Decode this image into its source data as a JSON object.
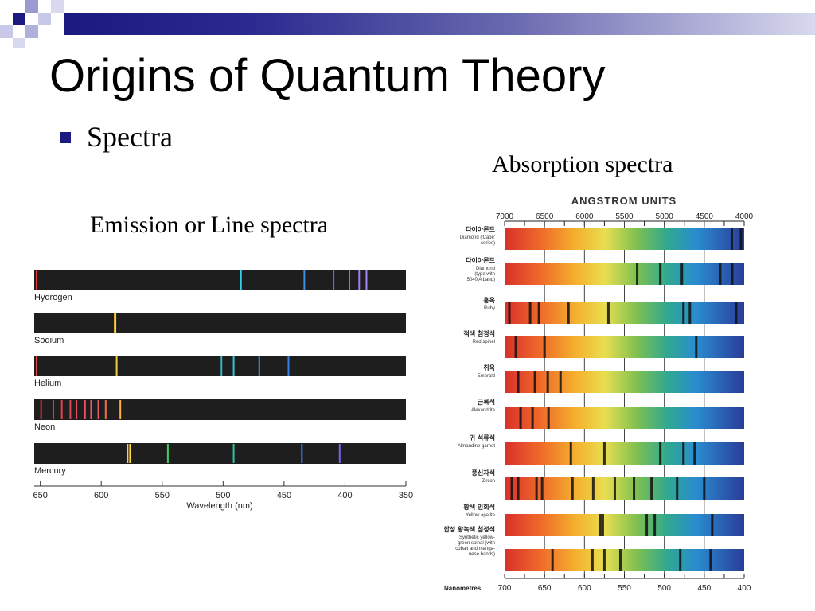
{
  "slide": {
    "title": "Origins of Quantum Theory",
    "bullet": "Spectra",
    "absorption_caption": "Absorption spectra",
    "emission_caption": "Emission or Line spectra",
    "accent_color": "#1a1a80"
  },
  "emission_panel": {
    "xlabel": "Wavelength (nm)",
    "ticks": [
      650,
      600,
      550,
      500,
      450,
      400,
      350
    ],
    "xlim": [
      655,
      350
    ],
    "spectra": [
      {
        "label": "Hydrogen",
        "lines": [
          {
            "nm": 656,
            "color": "#e23a3a"
          },
          {
            "nm": 486,
            "color": "#35d0e8"
          },
          {
            "nm": 434,
            "color": "#3a8fe6"
          },
          {
            "nm": 410,
            "color": "#6b5ee8"
          },
          {
            "nm": 397,
            "color": "#8a6ef0"
          },
          {
            "nm": 389,
            "color": "#9a7ef5"
          },
          {
            "nm": 383,
            "color": "#a08af5"
          }
        ]
      },
      {
        "label": "Sodium",
        "lines": [
          {
            "nm": 589,
            "color": "#ffd24a"
          },
          {
            "nm": 589.6,
            "color": "#ffc030"
          }
        ]
      },
      {
        "label": "Helium",
        "lines": [
          {
            "nm": 667,
            "color": "#e24a4a"
          },
          {
            "nm": 588,
            "color": "#f0d040"
          },
          {
            "nm": 502,
            "color": "#3ab0c0"
          },
          {
            "nm": 492,
            "color": "#35c5d0"
          },
          {
            "nm": 471,
            "color": "#3aa0e6"
          },
          {
            "nm": 447,
            "color": "#3a7fe6"
          }
        ]
      },
      {
        "label": "Neon",
        "lines": [
          {
            "nm": 650,
            "color": "#e03040"
          },
          {
            "nm": 640,
            "color": "#e83848"
          },
          {
            "nm": 633,
            "color": "#e84050"
          },
          {
            "nm": 626,
            "color": "#e04858"
          },
          {
            "nm": 621,
            "color": "#e85060"
          },
          {
            "nm": 614,
            "color": "#f05060"
          },
          {
            "nm": 609,
            "color": "#e85868"
          },
          {
            "nm": 603,
            "color": "#e86070"
          },
          {
            "nm": 597,
            "color": "#f07040"
          },
          {
            "nm": 585,
            "color": "#ffb040"
          }
        ]
      },
      {
        "label": "Mercury",
        "lines": [
          {
            "nm": 579,
            "color": "#ffd040"
          },
          {
            "nm": 577,
            "color": "#ffd850"
          },
          {
            "nm": 546,
            "color": "#40d060"
          },
          {
            "nm": 492,
            "color": "#30c0a0"
          },
          {
            "nm": 436,
            "color": "#4080ff"
          },
          {
            "nm": 405,
            "color": "#8060f0"
          }
        ]
      }
    ]
  },
  "absorption_panel": {
    "header": "ANGSTROM UNITS",
    "top_ticks": [
      "7000",
      "6500",
      "6000",
      "5500",
      "5000",
      "4500",
      "4000"
    ],
    "bottom_label": "Nanometres",
    "bottom_ticks": [
      "700",
      "650",
      "600",
      "550",
      "500",
      "450",
      "400"
    ],
    "gem_lines_angstrom": [
      [
        4155,
        4040
      ],
      [
        5340,
        5050,
        4780,
        4300,
        4150
      ],
      [
        6940,
        6680,
        6570,
        6200,
        5700,
        4760,
        4680,
        4100
      ],
      [
        6860,
        6500,
        4600
      ],
      [
        6830,
        6620,
        6460,
        6300
      ],
      [
        6800,
        6650,
        6450
      ],
      [
        6170,
        5750,
        5050,
        4760,
        4620
      ],
      [
        6910,
        6830,
        6600,
        6530,
        6150,
        5890,
        5620,
        5380,
        5160,
        4840,
        4500
      ],
      [
        5800,
        5770,
        5220,
        5120,
        4400
      ],
      [
        6400,
        5900,
        5750,
        5550,
        4800,
        4420
      ]
    ],
    "gems": [
      {
        "ko": "다이아몬드",
        "en": [
          "Diamond ('Cape'",
          "series)"
        ]
      },
      {
        "ko": "다이아몬드",
        "en": [
          "Diamond",
          "(type with",
          "5040 A band)"
        ]
      },
      {
        "ko": "홍옥",
        "en": [
          "Ruby"
        ]
      },
      {
        "ko": "적색 첨정석",
        "en": [
          "Red spinel"
        ]
      },
      {
        "ko": "취옥",
        "en": [
          "Emerald"
        ]
      },
      {
        "ko": "금록석",
        "en": [
          "Alexandrite"
        ]
      },
      {
        "ko": "귀 석류석",
        "en": [
          "Almandine garnet"
        ]
      },
      {
        "ko": "풍신자석",
        "en": [
          "Zircon"
        ]
      },
      {
        "ko": "황색 인회석",
        "en": [
          "Yellow apatite"
        ]
      },
      {
        "ko": "합성 황녹색 첨정석",
        "en": [
          "Synthetic yellow-",
          "green spinal (with",
          "cobalt and manga-",
          "nese bands)"
        ]
      }
    ]
  }
}
